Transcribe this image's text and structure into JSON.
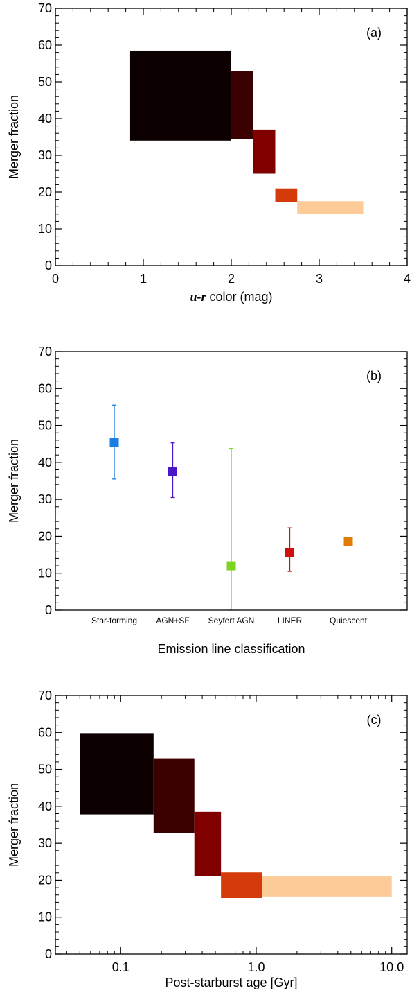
{
  "chart_data": [
    {
      "type": "bar",
      "panel_label": "(a)",
      "xlabel_italic": "u-r",
      "xlabel_rest": " color (mag)",
      "ylabel": "Merger fraction",
      "xlim": [
        0,
        4
      ],
      "ylim": [
        0,
        70
      ],
      "x_ticks": [
        0,
        1,
        2,
        3,
        4
      ],
      "x_tick_labels": [
        "0",
        "1",
        "2",
        "3",
        "4"
      ],
      "y_ticks": [
        0,
        10,
        20,
        30,
        40,
        50,
        60,
        70
      ],
      "y_tick_labels": [
        "0",
        "10",
        "20",
        "30",
        "40",
        "50",
        "60",
        "70"
      ],
      "bins": [
        {
          "x0": 0.85,
          "x1": 2.0,
          "ylow": 34.0,
          "yhigh": 58.5,
          "color": "#0d0000"
        },
        {
          "x0": 2.0,
          "x1": 2.25,
          "ylow": 34.5,
          "yhigh": 53.0,
          "color": "#3b0000"
        },
        {
          "x0": 2.25,
          "x1": 2.5,
          "ylow": 25.0,
          "yhigh": 37.0,
          "color": "#800000"
        },
        {
          "x0": 2.5,
          "x1": 2.75,
          "ylow": 17.2,
          "yhigh": 21.0,
          "color": "#d43a0a"
        },
        {
          "x0": 2.75,
          "x1": 3.5,
          "ylow": 14.0,
          "yhigh": 17.5,
          "color": "#fdcb98"
        }
      ]
    },
    {
      "type": "scatter",
      "panel_label": "(b)",
      "xlabel": "Emission line classification",
      "ylabel": "Merger fraction",
      "ylim": [
        0,
        70
      ],
      "y_ticks": [
        0,
        10,
        20,
        30,
        40,
        50,
        60,
        70
      ],
      "y_tick_labels": [
        "0",
        "10",
        "20",
        "30",
        "40",
        "50",
        "60",
        "70"
      ],
      "categories": [
        "Star-forming",
        "AGN+SF",
        "Seyfert AGN",
        "LINER",
        "Quiescent"
      ],
      "values": [
        45.5,
        37.5,
        12.0,
        15.5,
        18.5
      ],
      "err_low": [
        35.5,
        30.5,
        0.0,
        10.5,
        null
      ],
      "err_high": [
        55.5,
        45.3,
        43.8,
        22.3,
        null
      ],
      "colors": [
        "#1a7fe0",
        "#4a16c8",
        "#7ed321",
        "#d10f0f",
        "#e07a00"
      ]
    },
    {
      "type": "bar",
      "panel_label": "(c)",
      "xlabel": "Post-starburst age [Gyr]",
      "ylabel": "Merger fraction",
      "xscale": "log",
      "xlim": [
        0.033,
        13.0
      ],
      "ylim": [
        0,
        70
      ],
      "x_ticks": [
        0.1,
        1.0,
        10.0
      ],
      "x_tick_labels": [
        "0.1",
        "1.0",
        "10.0"
      ],
      "y_ticks": [
        0,
        10,
        20,
        30,
        40,
        50,
        60,
        70
      ],
      "y_tick_labels": [
        "0",
        "10",
        "20",
        "30",
        "40",
        "50",
        "60",
        "70"
      ],
      "bins": [
        {
          "x0": 0.05,
          "x1": 0.175,
          "ylow": 37.8,
          "yhigh": 59.8,
          "color": "#0d0000"
        },
        {
          "x0": 0.175,
          "x1": 0.35,
          "ylow": 32.8,
          "yhigh": 53.0,
          "color": "#3b0000"
        },
        {
          "x0": 0.35,
          "x1": 0.55,
          "ylow": 21.2,
          "yhigh": 38.5,
          "color": "#800000"
        },
        {
          "x0": 0.55,
          "x1": 1.1,
          "ylow": 15.2,
          "yhigh": 22.1,
          "color": "#d43a0a"
        },
        {
          "x0": 1.1,
          "x1": 10.0,
          "ylow": 15.6,
          "yhigh": 21.0,
          "color": "#fdcb98"
        }
      ]
    }
  ]
}
